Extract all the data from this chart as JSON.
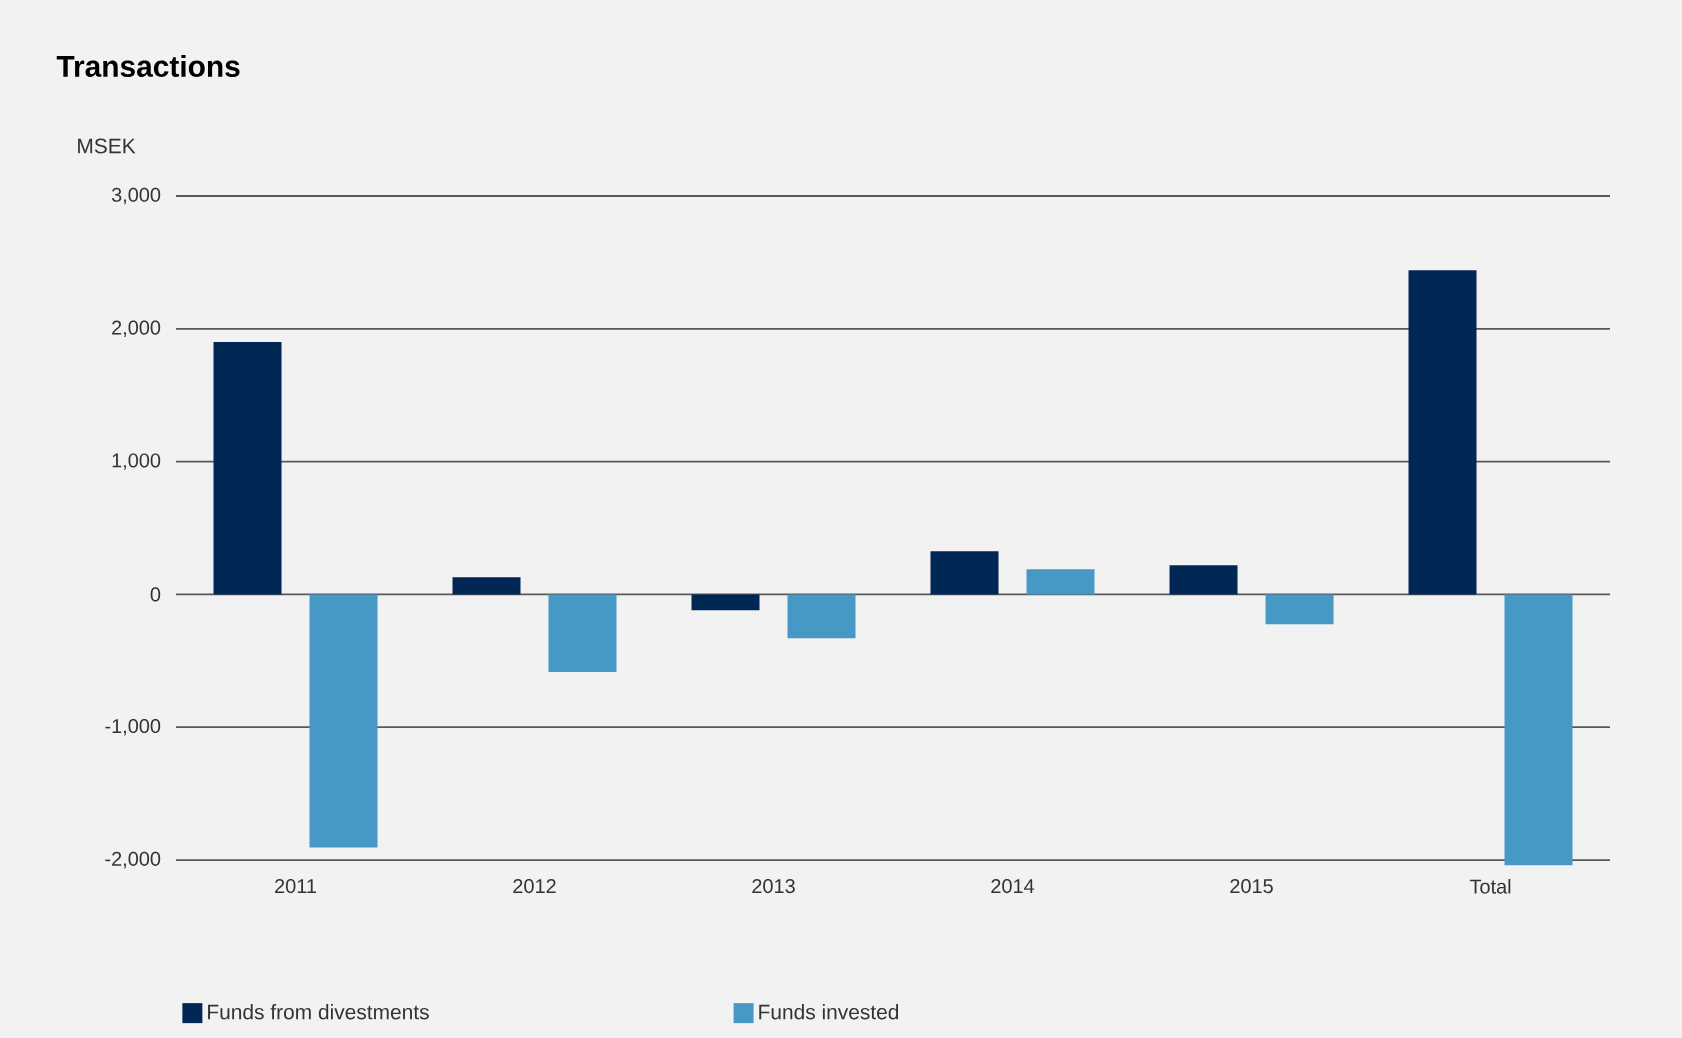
{
  "chart_data": {
    "type": "bar",
    "title": "Transactions",
    "ylabel": "MSEK",
    "categories": [
      "2011",
      "2012",
      "2013",
      "2014",
      "2015",
      "Total"
    ],
    "series": [
      {
        "name": "Funds from divestments",
        "color": "#012754",
        "values": [
          1900,
          130,
          -120,
          325,
          220,
          2440
        ]
      },
      {
        "name": "Funds invested",
        "color": "#4799c5",
        "values": [
          -1905,
          -585,
          -330,
          190,
          -225,
          -2040
        ]
      }
    ],
    "ylim": [
      -2060,
      3000
    ],
    "yticks": [
      {
        "value": -2000,
        "label": "-2,000"
      },
      {
        "value": -1000,
        "label": "-1,000"
      },
      0,
      {
        "value": 1000,
        "label": "1,000"
      },
      {
        "value": 2000,
        "label": "2,000"
      },
      {
        "value": 3000,
        "label": "3,000"
      }
    ],
    "grid": "y",
    "legend": "bottom"
  }
}
